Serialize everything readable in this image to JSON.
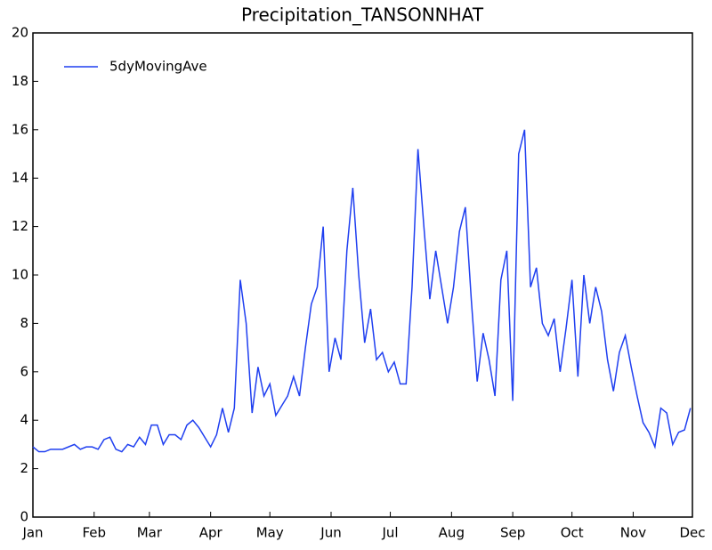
{
  "chart_data": {
    "type": "line",
    "title": "Precipitation_TANSONNHAT",
    "x": [
      0,
      3,
      6,
      9,
      12,
      15,
      18,
      21,
      24,
      27,
      30,
      33,
      36,
      39,
      42,
      45,
      48,
      51,
      54,
      57,
      60,
      63,
      66,
      69,
      72,
      75,
      78,
      81,
      84,
      87,
      90,
      93,
      96,
      99,
      102,
      105,
      108,
      111,
      114,
      117,
      120,
      123,
      126,
      129,
      132,
      135,
      138,
      141,
      144,
      147,
      150,
      153,
      156,
      159,
      162,
      165,
      168,
      171,
      174,
      177,
      180,
      183,
      186,
      189,
      192,
      195,
      198,
      201,
      204,
      207,
      210,
      213,
      216,
      219,
      222,
      225,
      228,
      231,
      234,
      237,
      240,
      243,
      246,
      249,
      252,
      255,
      258,
      261,
      264,
      267,
      270,
      273,
      276,
      279,
      282,
      285,
      288,
      291,
      294,
      297,
      300,
      303,
      306,
      309,
      312,
      315,
      318,
      321,
      324,
      327,
      330,
      333
    ],
    "series": [
      {
        "name": "5dyMovingAve",
        "color": "#1f3ff0",
        "values": [
          2.9,
          2.7,
          2.7,
          2.8,
          2.8,
          2.8,
          2.9,
          3.0,
          2.8,
          2.9,
          2.9,
          2.8,
          3.2,
          3.3,
          2.8,
          2.7,
          3.0,
          2.9,
          3.3,
          3.0,
          3.8,
          3.8,
          3.0,
          3.4,
          3.4,
          3.2,
          3.8,
          4.0,
          3.7,
          3.3,
          2.9,
          3.4,
          4.5,
          3.5,
          4.5,
          9.8,
          8.0,
          4.3,
          6.2,
          5.0,
          5.5,
          4.2,
          4.6,
          5.0,
          5.8,
          5.0,
          7.0,
          8.8,
          9.5,
          12.0,
          6.0,
          7.4,
          6.5,
          11.0,
          13.6,
          10.0,
          7.2,
          8.6,
          6.5,
          6.8,
          6.0,
          6.4,
          5.5,
          5.5,
          9.5,
          15.2,
          12.0,
          9.0,
          11.0,
          9.5,
          8.0,
          9.5,
          11.8,
          12.8,
          9.0,
          5.6,
          7.6,
          6.5,
          5.0,
          9.8,
          11.0,
          4.8,
          15.0,
          16.0,
          9.5,
          10.3,
          8.0,
          7.5,
          8.2,
          6.0,
          7.8,
          9.8,
          5.8,
          10.0,
          8.0,
          9.5,
          8.5,
          6.5,
          5.2,
          6.8,
          7.5,
          6.2,
          5.0,
          3.9,
          3.5,
          2.9,
          4.5,
          4.3,
          3.0,
          3.5,
          3.6,
          4.5
        ]
      }
    ],
    "xlim": [
      0,
      334
    ],
    "xticks": [
      {
        "value": 0,
        "label": "Jan"
      },
      {
        "value": 31,
        "label": "Feb"
      },
      {
        "value": 59,
        "label": "Mar"
      },
      {
        "value": 90,
        "label": "Apr"
      },
      {
        "value": 120,
        "label": "May"
      },
      {
        "value": 151,
        "label": "Jun"
      },
      {
        "value": 181,
        "label": "Jul"
      },
      {
        "value": 212,
        "label": "Aug"
      },
      {
        "value": 243,
        "label": "Sep"
      },
      {
        "value": 273,
        "label": "Oct"
      },
      {
        "value": 304,
        "label": "Nov"
      },
      {
        "value": 334,
        "label": "Dec"
      }
    ],
    "ylim": [
      0,
      20
    ],
    "yticks": [
      0,
      2,
      4,
      6,
      8,
      10,
      12,
      14,
      16,
      18,
      20
    ],
    "legend": "upper left",
    "grid": false
  }
}
